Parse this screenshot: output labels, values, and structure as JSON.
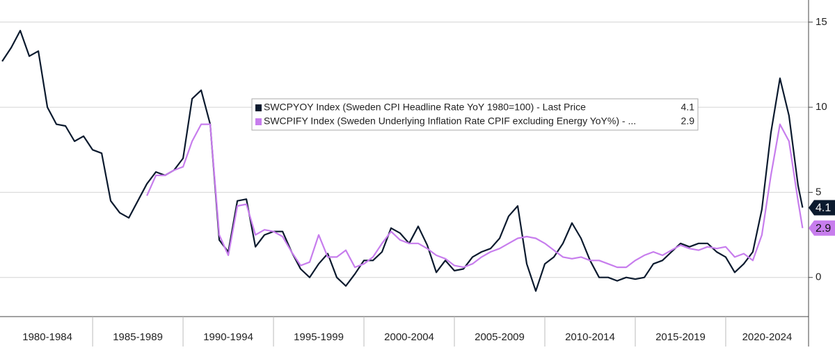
{
  "chart_data": {
    "type": "line",
    "x": [
      1980,
      1980.5,
      1981,
      1981.5,
      1982,
      1982.5,
      1983,
      1983.5,
      1984,
      1984.5,
      1985,
      1985.5,
      1986,
      1986.5,
      1987,
      1987.5,
      1988,
      1988.5,
      1989,
      1989.5,
      1990,
      1990.5,
      1991,
      1991.5,
      1992,
      1992.5,
      1993,
      1993.5,
      1994,
      1994.5,
      1995,
      1995.5,
      1996,
      1996.5,
      1997,
      1997.5,
      1998,
      1998.5,
      1999,
      1999.5,
      2000,
      2000.5,
      2001,
      2001.5,
      2002,
      2002.5,
      2003,
      2003.5,
      2004,
      2004.5,
      2005,
      2005.5,
      2006,
      2006.5,
      2007,
      2007.5,
      2008,
      2008.5,
      2009,
      2009.5,
      2010,
      2010.5,
      2011,
      2011.5,
      2012,
      2012.5,
      2013,
      2013.5,
      2014,
      2014.5,
      2015,
      2015.5,
      2016,
      2016.5,
      2017,
      2017.5,
      2018,
      2018.5,
      2019,
      2019.5,
      2020,
      2020.5,
      2021,
      2021.5,
      2022,
      2022.5,
      2023,
      2023.5,
      2024,
      2024.25
    ],
    "series": [
      {
        "name": "SWCPYOY Index (Sweden CPI Headline Rate YoY 1980=100) - Last Price",
        "color": "#0b1a2e",
        "last_value_label": "4.1",
        "values": [
          12.7,
          13.5,
          14.5,
          13,
          13.3,
          10,
          9,
          8.9,
          8,
          8.3,
          7.5,
          7.3,
          4.5,
          3.8,
          3.5,
          4.5,
          5.5,
          6.2,
          6.0,
          6.3,
          7,
          10.5,
          11,
          9,
          2.2,
          1.5,
          4.5,
          4.6,
          1.8,
          2.5,
          2.7,
          2.7,
          1.5,
          0.5,
          0,
          0.8,
          1.4,
          0,
          -0.5,
          0.2,
          1.0,
          1.0,
          1.5,
          2.9,
          2.6,
          2.0,
          3.0,
          1.9,
          0.3,
          1.0,
          0.4,
          0.5,
          1.2,
          1.5,
          1.7,
          2.3,
          3.6,
          4.2,
          0.8,
          -0.8,
          0.8,
          1.2,
          2.0,
          3.2,
          2.3,
          1.0,
          0,
          0,
          -0.2,
          0,
          -0.1,
          0,
          0.8,
          1.0,
          1.5,
          2.0,
          1.8,
          2.0,
          2.0,
          1.5,
          1.2,
          0.3,
          0.8,
          1.5,
          4.0,
          8.5,
          11.7,
          9.5,
          5.4,
          4.1
        ]
      },
      {
        "name": "SWCPIFY Index (Sweden Underlying Inflation Rate CPIF excluding Energy YoY%) - ...",
        "color": "#c77ded",
        "last_value_label": "2.9",
        "values": [
          null,
          null,
          null,
          null,
          null,
          null,
          null,
          null,
          null,
          null,
          null,
          null,
          null,
          null,
          null,
          null,
          4.8,
          6.0,
          6.0,
          6.3,
          6.5,
          8,
          9,
          9,
          2.5,
          1.3,
          4.2,
          4.3,
          2.5,
          2.8,
          2.7,
          2.4,
          1.5,
          0.7,
          0.9,
          2.5,
          1.2,
          1.2,
          1.6,
          0.6,
          0.8,
          1.2,
          2.0,
          2.7,
          2.2,
          2.0,
          2.0,
          1.7,
          1.3,
          1.1,
          0.7,
          0.6,
          0.8,
          1.2,
          1.5,
          1.7,
          2.0,
          2.3,
          2.4,
          2.3,
          2.0,
          1.6,
          1.2,
          1.1,
          1.2,
          1.0,
          1.0,
          0.8,
          0.6,
          0.6,
          1.0,
          1.3,
          1.5,
          1.3,
          1.6,
          1.9,
          1.7,
          1.6,
          1.8,
          1.7,
          1.8,
          1.2,
          1.4,
          1.0,
          2.5,
          6.0,
          9.0,
          8.0,
          4.5,
          2.9
        ]
      }
    ],
    "periods": [
      {
        "label": "1980-1984",
        "start": 1980,
        "end": 1985
      },
      {
        "label": "1985-1989",
        "start": 1985,
        "end": 1990
      },
      {
        "label": "1990-1994",
        "start": 1990,
        "end": 1995
      },
      {
        "label": "1995-1999",
        "start": 1995,
        "end": 2000
      },
      {
        "label": "2000-2004",
        "start": 2000,
        "end": 2005
      },
      {
        "label": "2005-2009",
        "start": 2005,
        "end": 2010
      },
      {
        "label": "2010-2014",
        "start": 2010,
        "end": 2015
      },
      {
        "label": "2015-2019",
        "start": 2015,
        "end": 2020
      },
      {
        "label": "2020-2024",
        "start": 2020,
        "end": 2025
      }
    ],
    "xlim": [
      1979.88,
      2024.58
    ],
    "ylim": [
      -2.3,
      16.3
    ],
    "yticks": [
      0,
      5,
      10,
      15
    ],
    "grid": true
  }
}
